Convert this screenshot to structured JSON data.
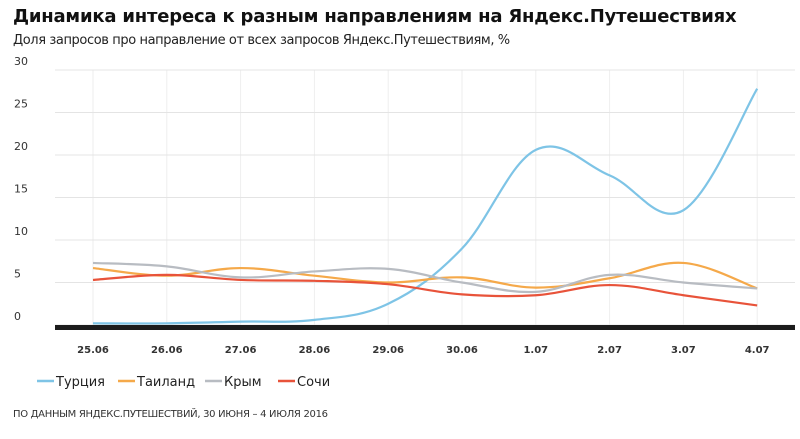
{
  "title": "Динамика интереса к разным направлениям на Яндекс.Путешествиях",
  "subtitle": "Доля запросов про направление от всех запросов Яндекс.Путешествиям, %",
  "footer": "ПО ДАННЫМ ЯНДЕКС.ПУТЕШЕСТВИЙ, 30 ИЮНЯ – 4 ИЮЛЯ 2016",
  "chart_data": {
    "type": "line",
    "title": "Динамика интереса к разным направлениям на Яндекс.Путешествиях",
    "subtitle": "Доля запросов про направление от всех запросов Яндекс.Путешествиям, %",
    "categories": [
      "25.06",
      "26.06",
      "27.06",
      "28.06",
      "29.06",
      "30.06",
      "1.07",
      "2.07",
      "3.07",
      "4.07"
    ],
    "yticks": [
      "0",
      "5",
      "10",
      "15",
      "20",
      "25",
      "30"
    ],
    "ylim": [
      0,
      30
    ],
    "grid": true,
    "smooth": true,
    "legend": "bottom-left",
    "series": [
      {
        "name": "Турция",
        "color": "#7ec4e6",
        "values": [
          0.2,
          0.2,
          0.4,
          0.6,
          2.5,
          9.0,
          20.6,
          17.6,
          13.5,
          27.8
        ]
      },
      {
        "name": "Таиланд",
        "color": "#f5a94a",
        "values": [
          6.7,
          5.8,
          6.7,
          5.8,
          5.0,
          5.6,
          4.4,
          5.5,
          7.3,
          4.3
        ]
      },
      {
        "name": "Крым",
        "color": "#b8bcc2",
        "values": [
          7.3,
          6.9,
          5.6,
          6.3,
          6.6,
          5.0,
          3.9,
          5.9,
          5.0,
          4.3
        ]
      },
      {
        "name": "Сочи",
        "color": "#e8533a",
        "values": [
          5.3,
          5.9,
          5.3,
          5.2,
          4.8,
          3.6,
          3.5,
          4.7,
          3.5,
          2.3
        ]
      }
    ]
  }
}
